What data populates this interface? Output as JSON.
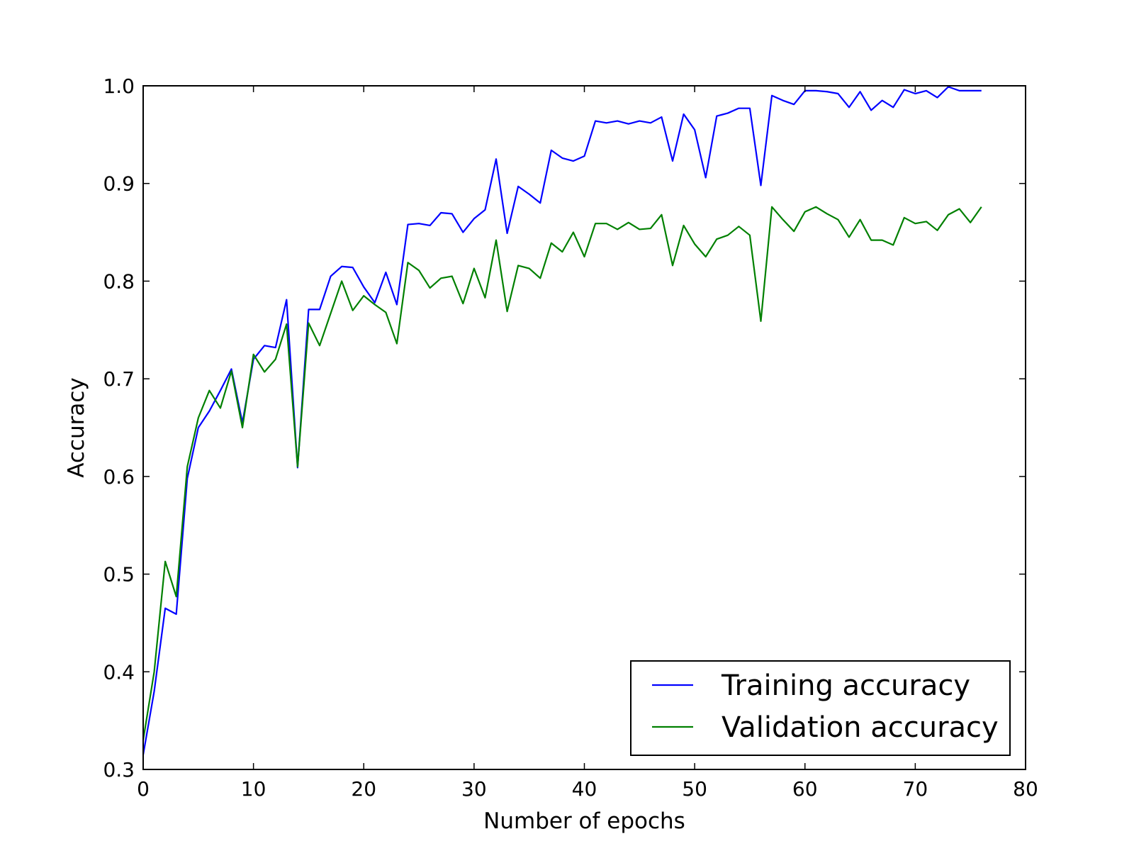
{
  "chart_data": {
    "type": "line",
    "title": "",
    "xlabel": "Number of epochs",
    "ylabel": "Accuracy",
    "xlim": [
      0,
      80
    ],
    "ylim": [
      0.3,
      1.0
    ],
    "xticks": [
      "0",
      "10",
      "20",
      "30",
      "40",
      "50",
      "60",
      "70",
      "80"
    ],
    "yticks": [
      "0.3",
      "0.4",
      "0.5",
      "0.6",
      "0.7",
      "0.8",
      "0.9",
      "1.0"
    ],
    "grid": false,
    "legend_position": "lower-right",
    "x": [
      0,
      1,
      2,
      3,
      4,
      5,
      6,
      7,
      8,
      9,
      10,
      11,
      12,
      13,
      14,
      15,
      16,
      17,
      18,
      19,
      20,
      21,
      22,
      23,
      24,
      25,
      26,
      27,
      28,
      29,
      30,
      31,
      32,
      33,
      34,
      35,
      36,
      37,
      38,
      39,
      40,
      41,
      42,
      43,
      44,
      45,
      46,
      47,
      48,
      49,
      50,
      51,
      52,
      53,
      54,
      55,
      56,
      57,
      58,
      59,
      60,
      61,
      62,
      63,
      64,
      65,
      66,
      67,
      68,
      69,
      70,
      71,
      72,
      73,
      74,
      75,
      76
    ],
    "series": [
      {
        "name": "Training accuracy",
        "color": "#0000ff",
        "values": [
          0.315,
          0.38,
          0.465,
          0.459,
          0.598,
          0.65,
          0.667,
          0.688,
          0.71,
          0.655,
          0.72,
          0.734,
          0.732,
          0.781,
          0.609,
          0.771,
          0.771,
          0.805,
          0.815,
          0.814,
          0.794,
          0.778,
          0.809,
          0.776,
          0.858,
          0.859,
          0.857,
          0.87,
          0.869,
          0.85,
          0.864,
          0.873,
          0.925,
          0.849,
          0.897,
          0.889,
          0.88,
          0.934,
          0.926,
          0.923,
          0.928,
          0.964,
          0.962,
          0.964,
          0.961,
          0.964,
          0.962,
          0.968,
          0.923,
          0.971,
          0.955,
          0.906,
          0.969,
          0.972,
          0.977,
          0.977,
          0.898,
          0.99,
          0.985,
          0.981,
          0.995,
          0.995,
          0.994,
          0.992,
          0.978,
          0.994,
          0.975,
          0.985,
          0.978,
          0.996,
          0.992,
          0.995,
          0.988,
          0.999,
          0.995,
          0.995,
          0.995
        ]
      },
      {
        "name": "Validation accuracy",
        "color": "#008000",
        "values": [
          0.33,
          0.4,
          0.513,
          0.477,
          0.61,
          0.66,
          0.688,
          0.67,
          0.708,
          0.65,
          0.725,
          0.707,
          0.72,
          0.756,
          0.61,
          0.757,
          0.734,
          0.767,
          0.8,
          0.77,
          0.785,
          0.776,
          0.768,
          0.736,
          0.819,
          0.811,
          0.793,
          0.803,
          0.805,
          0.777,
          0.813,
          0.783,
          0.842,
          0.769,
          0.816,
          0.813,
          0.803,
          0.839,
          0.83,
          0.85,
          0.825,
          0.859,
          0.859,
          0.853,
          0.86,
          0.853,
          0.854,
          0.868,
          0.816,
          0.857,
          0.838,
          0.825,
          0.843,
          0.847,
          0.856,
          0.847,
          0.759,
          0.876,
          0.863,
          0.851,
          0.871,
          0.876,
          0.869,
          0.863,
          0.845,
          0.863,
          0.842,
          0.842,
          0.837,
          0.865,
          0.859,
          0.861,
          0.852,
          0.868,
          0.874,
          0.86,
          0.876
        ]
      }
    ]
  }
}
